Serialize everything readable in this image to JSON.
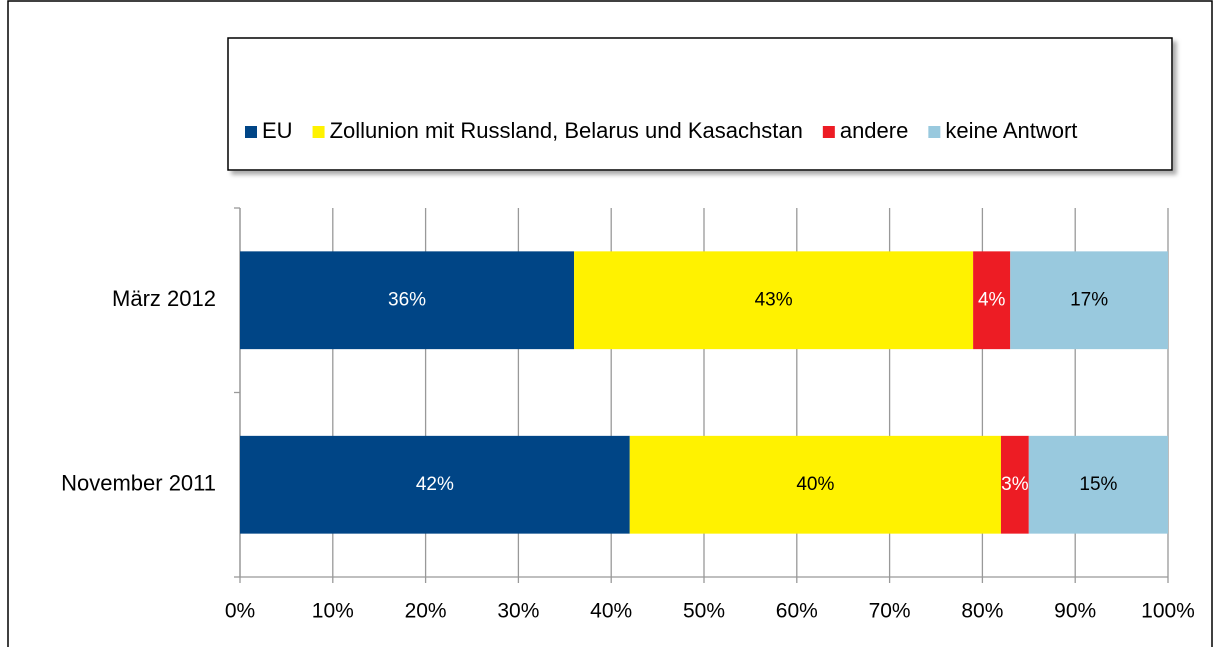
{
  "chart_data": {
    "type": "stacked_bar_horizontal",
    "categories": [
      "März 2012",
      "November 2011"
    ],
    "series": [
      {
        "name": "EU",
        "color": "#004586",
        "values": [
          36,
          42
        ],
        "value_labels": [
          "36%",
          "42%"
        ],
        "label_color": "#ffffff"
      },
      {
        "name": "Zollunion mit Russland, Belarus und Kasachstan",
        "color": "#fff200",
        "values": [
          43,
          40
        ],
        "value_labels": [
          "43%",
          "40%"
        ],
        "label_color": "#000000"
      },
      {
        "name": "andere",
        "color": "#ed1c24",
        "values": [
          4,
          3
        ],
        "value_labels": [
          "4%",
          "3%"
        ],
        "label_color": "#ffffff"
      },
      {
        "name": "keine Antwort",
        "color": "#99c9de",
        "values": [
          17,
          15
        ],
        "value_labels": [
          "17%",
          "15%"
        ],
        "label_color": "#000000"
      }
    ],
    "xlim": [
      0,
      100
    ],
    "xticks": [
      {
        "value": 0,
        "label": "0%"
      },
      {
        "value": 10,
        "label": "10%"
      },
      {
        "value": 20,
        "label": "20%"
      },
      {
        "value": 30,
        "label": "30%"
      },
      {
        "value": 40,
        "label": "40%"
      },
      {
        "value": 50,
        "label": "50%"
      },
      {
        "value": 60,
        "label": "60%"
      },
      {
        "value": 70,
        "label": "70%"
      },
      {
        "value": 80,
        "label": "80%"
      },
      {
        "value": 90,
        "label": "90%"
      },
      {
        "value": 100,
        "label": "100%"
      }
    ],
    "grid": true,
    "legend": "top"
  }
}
